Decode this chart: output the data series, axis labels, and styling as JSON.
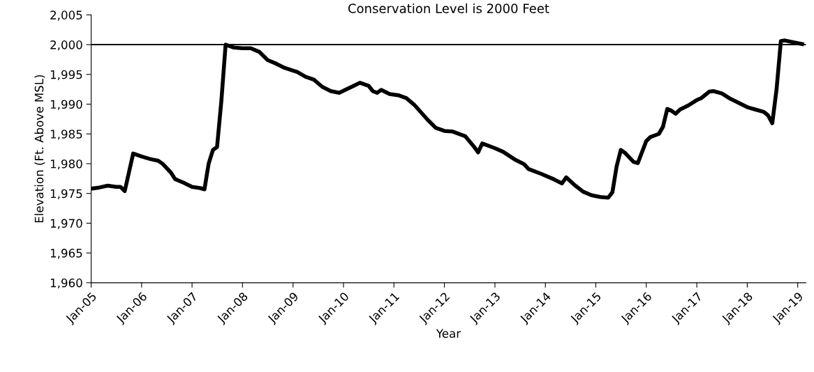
{
  "chart_data": {
    "type": "line",
    "xlabel": "Year",
    "ylabel": "Elevation (Ft. Above MSL)",
    "x": [
      "2005-01",
      "2005-03",
      "2005-05",
      "2005-07",
      "2005-08",
      "2005-09",
      "2005-11",
      "2006-01",
      "2006-03",
      "2006-05",
      "2006-06",
      "2006-08",
      "2006-09",
      "2006-11",
      "2007-01",
      "2007-03",
      "2007-04",
      "2007-05",
      "2007-06",
      "2007-07",
      "2007-08",
      "2007-09",
      "2007-11",
      "2008-01",
      "2008-03",
      "2008-05",
      "2008-07",
      "2008-09",
      "2008-11",
      "2009-02",
      "2009-04",
      "2009-06",
      "2009-08",
      "2009-10",
      "2009-12",
      "2010-02",
      "2010-05",
      "2010-07",
      "2010-08",
      "2010-09",
      "2010-10",
      "2010-12",
      "2011-02",
      "2011-04",
      "2011-06",
      "2011-09",
      "2011-11",
      "2012-01",
      "2012-03",
      "2012-06",
      "2012-08",
      "2012-09",
      "2012-10",
      "2013-01",
      "2013-03",
      "2013-06",
      "2013-08",
      "2013-09",
      "2013-12",
      "2014-03",
      "2014-05",
      "2014-06",
      "2014-08",
      "2014-10",
      "2014-12",
      "2015-02",
      "2015-04",
      "2015-05",
      "2015-06",
      "2015-07",
      "2015-08",
      "2015-10",
      "2015-11",
      "2016-01",
      "2016-02",
      "2016-04",
      "2016-05",
      "2016-06",
      "2016-07",
      "2016-08",
      "2016-09",
      "2016-11",
      "2017-01",
      "2017-02",
      "2017-04",
      "2017-05",
      "2017-07",
      "2017-09",
      "2017-11",
      "2018-01",
      "2018-03",
      "2018-05",
      "2018-06",
      "2018-07",
      "2018-08",
      "2018-09",
      "2018-10",
      "2018-12",
      "2019-02"
    ],
    "series": [
      {
        "color": "#000000",
        "values": [
          1975.8,
          1976.0,
          1976.3,
          1976.1,
          1976.1,
          1975.4,
          1981.7,
          1981.2,
          1980.8,
          1980.5,
          1980.0,
          1978.5,
          1977.4,
          1976.8,
          1976.1,
          1975.9,
          1975.7,
          1980.0,
          1982.3,
          1982.8,
          1990.5,
          2000.0,
          1999.5,
          1999.4,
          1999.4,
          1998.8,
          1997.4,
          1996.8,
          1996.1,
          1995.4,
          1994.6,
          1994.1,
          1992.9,
          1992.2,
          1991.9,
          1992.6,
          1993.6,
          1993.1,
          1992.2,
          1991.9,
          1992.4,
          1991.7,
          1991.5,
          1991.0,
          1989.8,
          1987.4,
          1986.0,
          1985.5,
          1985.4,
          1984.6,
          1982.9,
          1981.9,
          1983.4,
          1982.6,
          1982.0,
          1980.6,
          1979.9,
          1979.1,
          1978.3,
          1977.4,
          1976.7,
          1977.7,
          1976.4,
          1975.3,
          1974.7,
          1974.4,
          1974.3,
          1975.2,
          1979.6,
          1982.3,
          1981.8,
          1980.3,
          1980.1,
          1983.8,
          1984.5,
          1985.0,
          1986.2,
          1989.2,
          1988.9,
          1988.4,
          1989.1,
          1989.8,
          1990.7,
          1991.0,
          1992.1,
          1992.2,
          1991.8,
          1990.9,
          1990.2,
          1989.5,
          1989.1,
          1988.7,
          1988.1,
          1986.8,
          1992.5,
          2000.6,
          2000.7,
          2000.4,
          2000.1
        ]
      }
    ],
    "xlim": [
      "2005-01",
      "2019-03"
    ],
    "xticks": [
      {
        "value": "2005-01",
        "label": "Jan-05"
      },
      {
        "value": "2006-01",
        "label": "Jan-06"
      },
      {
        "value": "2007-01",
        "label": "Jan-07"
      },
      {
        "value": "2008-01",
        "label": "Jan-08"
      },
      {
        "value": "2009-01",
        "label": "Jan-09"
      },
      {
        "value": "2010-01",
        "label": "Jan-10"
      },
      {
        "value": "2011-01",
        "label": "Jan-11"
      },
      {
        "value": "2012-01",
        "label": "Jan-12"
      },
      {
        "value": "2013-01",
        "label": "Jan-13"
      },
      {
        "value": "2014-01",
        "label": "Jan-14"
      },
      {
        "value": "2015-01",
        "label": "Jan-15"
      },
      {
        "value": "2016-01",
        "label": "Jan-16"
      },
      {
        "value": "2017-01",
        "label": "Jan-17"
      },
      {
        "value": "2018-01",
        "label": "Jan-18"
      },
      {
        "value": "2019-01",
        "label": "Jan-19"
      }
    ],
    "ylim": [
      1960,
      2005
    ],
    "yticks": [
      {
        "value": 1960,
        "label": "1,960"
      },
      {
        "value": 1965,
        "label": "1,965"
      },
      {
        "value": 1970,
        "label": "1,970"
      },
      {
        "value": 1975,
        "label": "1,975"
      },
      {
        "value": 1980,
        "label": "1,980"
      },
      {
        "value": 1985,
        "label": "1,985"
      },
      {
        "value": 1990,
        "label": "1,990"
      },
      {
        "value": 1995,
        "label": "1,995"
      },
      {
        "value": 2000,
        "label": "2,000"
      },
      {
        "value": 2005,
        "label": "2,005"
      }
    ],
    "ref_lines": [
      {
        "axis": "y",
        "value": 2000,
        "label": "Conservation Level is 2000 Feet",
        "color": "#000000",
        "line_style": "solid"
      }
    ],
    "grid": false,
    "legend": false,
    "marker": "none",
    "line_style": "solid"
  }
}
